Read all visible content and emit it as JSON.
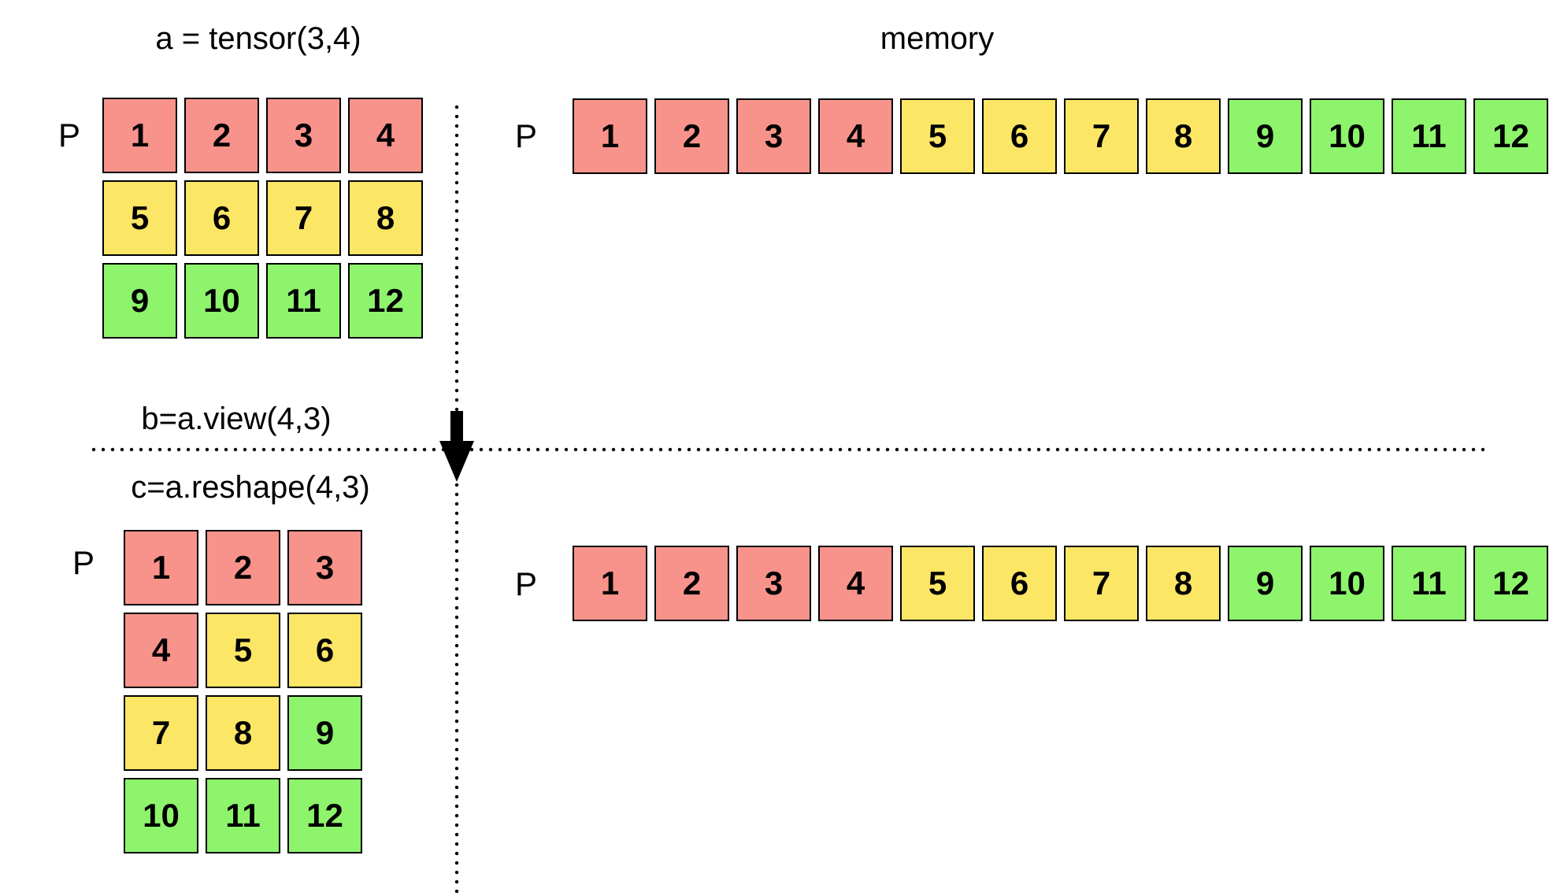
{
  "titles": {
    "tensor_a": "a = tensor(3,4)",
    "memory": "memory",
    "view_b": "b=a.view(4,3)",
    "reshape_c": "c=a.reshape(4,3)"
  },
  "pointer_labels": {
    "tensor_a": "P",
    "memory_top": "P",
    "view_c": "P",
    "memory_bottom": "P"
  },
  "colors": {
    "red": "#F8938C",
    "yellow": "#FBE666",
    "green": "#8DF46C",
    "line": "#000000"
  },
  "grids": {
    "tensor_a": {
      "columns": 4,
      "cells": [
        {
          "value": "1",
          "color": "red"
        },
        {
          "value": "2",
          "color": "red"
        },
        {
          "value": "3",
          "color": "red"
        },
        {
          "value": "4",
          "color": "red"
        },
        {
          "value": "5",
          "color": "yellow"
        },
        {
          "value": "6",
          "color": "yellow"
        },
        {
          "value": "7",
          "color": "yellow"
        },
        {
          "value": "8",
          "color": "yellow"
        },
        {
          "value": "9",
          "color": "green"
        },
        {
          "value": "10",
          "color": "green"
        },
        {
          "value": "11",
          "color": "green"
        },
        {
          "value": "12",
          "color": "green"
        }
      ]
    },
    "memory_top": {
      "columns": 12,
      "cells": [
        {
          "value": "1",
          "color": "red"
        },
        {
          "value": "2",
          "color": "red"
        },
        {
          "value": "3",
          "color": "red"
        },
        {
          "value": "4",
          "color": "red"
        },
        {
          "value": "5",
          "color": "yellow"
        },
        {
          "value": "6",
          "color": "yellow"
        },
        {
          "value": "7",
          "color": "yellow"
        },
        {
          "value": "8",
          "color": "yellow"
        },
        {
          "value": "9",
          "color": "green"
        },
        {
          "value": "10",
          "color": "green"
        },
        {
          "value": "11",
          "color": "green"
        },
        {
          "value": "12",
          "color": "green"
        }
      ]
    },
    "view_c": {
      "columns": 3,
      "cells": [
        {
          "value": "1",
          "color": "red"
        },
        {
          "value": "2",
          "color": "red"
        },
        {
          "value": "3",
          "color": "red"
        },
        {
          "value": "4",
          "color": "red"
        },
        {
          "value": "5",
          "color": "yellow"
        },
        {
          "value": "6",
          "color": "yellow"
        },
        {
          "value": "7",
          "color": "yellow"
        },
        {
          "value": "8",
          "color": "yellow"
        },
        {
          "value": "9",
          "color": "green"
        },
        {
          "value": "10",
          "color": "green"
        },
        {
          "value": "11",
          "color": "green"
        },
        {
          "value": "12",
          "color": "green"
        }
      ]
    },
    "memory_bottom": {
      "columns": 12,
      "cells": [
        {
          "value": "1",
          "color": "red"
        },
        {
          "value": "2",
          "color": "red"
        },
        {
          "value": "3",
          "color": "red"
        },
        {
          "value": "4",
          "color": "red"
        },
        {
          "value": "5",
          "color": "yellow"
        },
        {
          "value": "6",
          "color": "yellow"
        },
        {
          "value": "7",
          "color": "yellow"
        },
        {
          "value": "8",
          "color": "yellow"
        },
        {
          "value": "9",
          "color": "green"
        },
        {
          "value": "10",
          "color": "green"
        },
        {
          "value": "11",
          "color": "green"
        },
        {
          "value": "12",
          "color": "green"
        }
      ]
    }
  }
}
